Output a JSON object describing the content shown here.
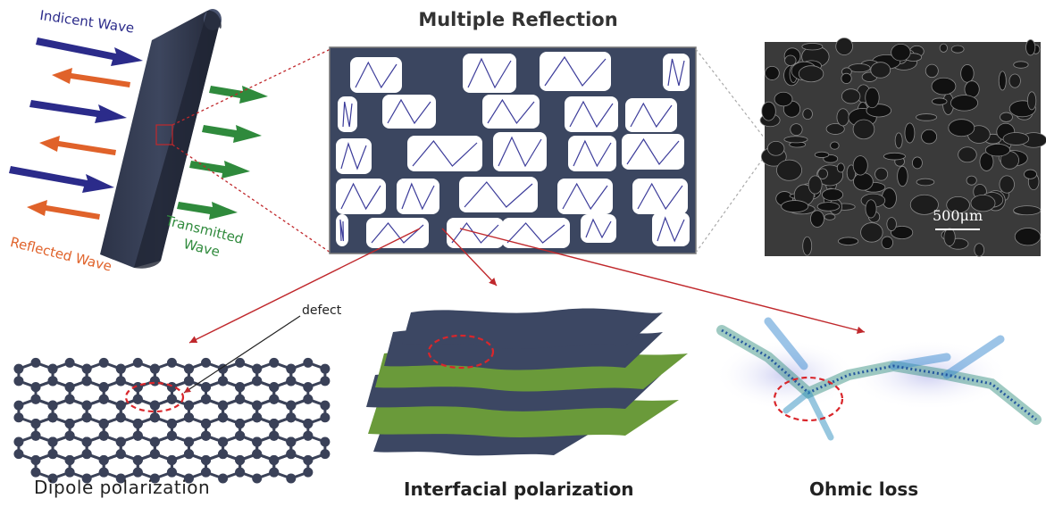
{
  "figure": {
    "title": "Multiple Reflection",
    "wave_labels": {
      "incident": "Indicent Wave",
      "reflected": "Reflected Wave",
      "transmitted_line1": "Transmitted",
      "transmitted_line2": "Wave"
    },
    "defect_label": "defect",
    "scale_bar": "500μm",
    "captions": {
      "dipole": "Dipole polarization",
      "interfacial": "Interfacial polarization",
      "ohmic": "Ohmic loss"
    },
    "colors": {
      "incident": "#2b2b8a",
      "reflected": "#e0622a",
      "transmitted": "#2f8a3c",
      "foam": "#3b4660",
      "sheet_dark": "#3c4763",
      "sheet_green": "#6a9a3a",
      "pointer_line": "#c0282c"
    }
  }
}
